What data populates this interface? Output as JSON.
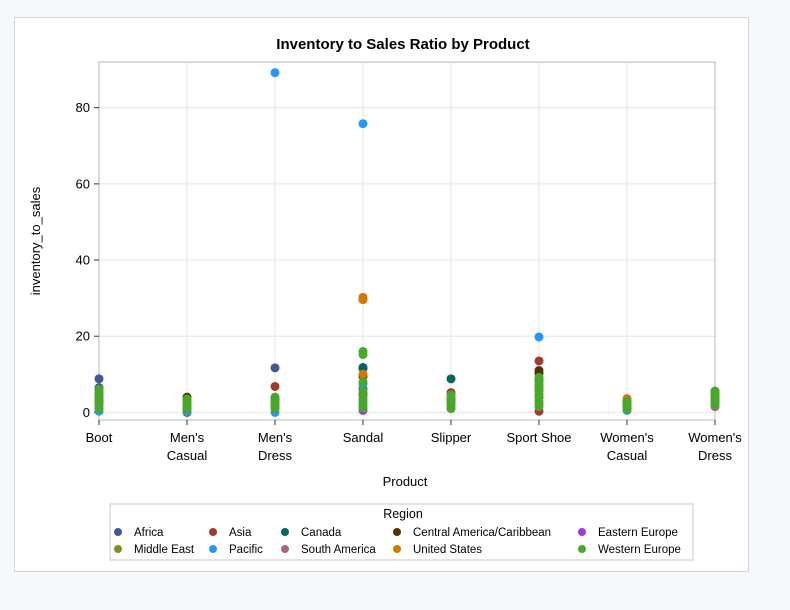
{
  "chart_data": {
    "type": "scatter",
    "title": "Inventory to Sales Ratio by Product",
    "xlabel": "Product",
    "ylabel": "inventory_to_sales",
    "categories": [
      [
        "Boot"
      ],
      [
        "Men's",
        "Casual"
      ],
      [
        "Men's",
        "Dress"
      ],
      [
        "Sandal"
      ],
      [
        "Slipper"
      ],
      [
        "Sport Shoe"
      ],
      [
        "Women's",
        "Casual"
      ],
      [
        "Women's",
        "Dress"
      ]
    ],
    "ylim": [
      -2,
      92
    ],
    "yticks": [
      0,
      20,
      40,
      60,
      80
    ],
    "grid": true,
    "legend": {
      "title": "Region",
      "position": "bottom"
    },
    "series": [
      {
        "name": "Africa",
        "color": "#445694",
        "points": [
          [
            0,
            8.8
          ],
          [
            0,
            6.5
          ],
          [
            2,
            11.7
          ],
          [
            3,
            11.5
          ],
          [
            3,
            6.2
          ],
          [
            7,
            5.2
          ]
        ]
      },
      {
        "name": "Asia",
        "color": "#a23a2e",
        "points": [
          [
            0,
            2.0
          ],
          [
            1,
            0.0
          ],
          [
            1,
            2.2
          ],
          [
            2,
            6.8
          ],
          [
            3,
            4.8
          ],
          [
            4,
            5.2
          ],
          [
            5,
            13.5
          ],
          [
            5,
            0.3
          ],
          [
            6,
            1.0
          ],
          [
            7,
            2.5
          ]
        ]
      },
      {
        "name": "Canada",
        "color": "#01665e",
        "points": [
          [
            0,
            5.0
          ],
          [
            1,
            3.0
          ],
          [
            2,
            3.5
          ],
          [
            3,
            11.8
          ],
          [
            4,
            8.8
          ],
          [
            5,
            8.5
          ],
          [
            6,
            2.6
          ],
          [
            7,
            4.8
          ]
        ]
      },
      {
        "name": "Central America/Caribbean",
        "color": "#543005",
        "points": [
          [
            0,
            3.0
          ],
          [
            1,
            4.0
          ],
          [
            2,
            2.4
          ],
          [
            3,
            9.5
          ],
          [
            4,
            3.5
          ],
          [
            5,
            11.0
          ],
          [
            5,
            10.2
          ],
          [
            6,
            2.4
          ],
          [
            7,
            3.8
          ]
        ]
      },
      {
        "name": "Eastern Europe",
        "color": "#9d3cdb",
        "points": [
          [
            0,
            4.2
          ],
          [
            1,
            1.0
          ],
          [
            2,
            1.8
          ],
          [
            3,
            0.5
          ],
          [
            4,
            3.2
          ],
          [
            5,
            4.0
          ],
          [
            6,
            1.8
          ],
          [
            7,
            3.0
          ]
        ]
      },
      {
        "name": "Middle East",
        "color": "#7f8e1f",
        "points": [
          [
            0,
            5.5
          ],
          [
            1,
            2.5
          ],
          [
            2,
            3.0
          ],
          [
            3,
            2.2
          ],
          [
            4,
            4.0
          ],
          [
            5,
            6.0
          ],
          [
            6,
            3.0
          ],
          [
            7,
            4.5
          ]
        ]
      },
      {
        "name": "Pacific",
        "color": "#2597fa",
        "points": [
          [
            0,
            0.3
          ],
          [
            1,
            0.2
          ],
          [
            2,
            89.2
          ],
          [
            2,
            0.0
          ],
          [
            3,
            75.8
          ],
          [
            3,
            7.4
          ],
          [
            4,
            2.0
          ],
          [
            5,
            19.8
          ],
          [
            6,
            0.5
          ],
          [
            7,
            3.5
          ]
        ]
      },
      {
        "name": "South America",
        "color": "#b26084",
        "points": [
          [
            0,
            2.2
          ],
          [
            1,
            1.5
          ],
          [
            2,
            2.1
          ],
          [
            3,
            3.3
          ],
          [
            4,
            2.5
          ],
          [
            5,
            2.2
          ],
          [
            6,
            1.6
          ],
          [
            7,
            1.5
          ]
        ]
      },
      {
        "name": "United States",
        "color": "#d17800",
        "points": [
          [
            0,
            3.8
          ],
          [
            1,
            2.2
          ],
          [
            2,
            2.3
          ],
          [
            3,
            30.2
          ],
          [
            3,
            29.6
          ],
          [
            3,
            10.0
          ],
          [
            4,
            3.0
          ],
          [
            5,
            7.0
          ],
          [
            6,
            3.6
          ],
          [
            7,
            4.0
          ]
        ]
      },
      {
        "name": "Western Europe",
        "color": "#47a82a",
        "points": [
          [
            0,
            1.0
          ],
          [
            0,
            1.8
          ],
          [
            0,
            2.5
          ],
          [
            0,
            3.5
          ],
          [
            0,
            4.5
          ],
          [
            0,
            6.0
          ],
          [
            1,
            0.8
          ],
          [
            1,
            1.5
          ],
          [
            1,
            2.8
          ],
          [
            1,
            3.5
          ],
          [
            2,
            1.0
          ],
          [
            2,
            1.5
          ],
          [
            2,
            2.6
          ],
          [
            2,
            3.3
          ],
          [
            2,
            4.0
          ],
          [
            3,
            16.0
          ],
          [
            3,
            15.2
          ],
          [
            3,
            8.0
          ],
          [
            3,
            5.5
          ],
          [
            3,
            4.0
          ],
          [
            3,
            3.0
          ],
          [
            3,
            2.0
          ],
          [
            3,
            1.2
          ],
          [
            4,
            1.0
          ],
          [
            4,
            1.8
          ],
          [
            4,
            2.8
          ],
          [
            4,
            3.8
          ],
          [
            4,
            4.6
          ],
          [
            5,
            1.5
          ],
          [
            5,
            2.8
          ],
          [
            5,
            3.8
          ],
          [
            5,
            4.8
          ],
          [
            5,
            5.6
          ],
          [
            5,
            6.5
          ],
          [
            5,
            7.2
          ],
          [
            5,
            7.8
          ],
          [
            5,
            8.6
          ],
          [
            5,
            9.2
          ],
          [
            6,
            0.8
          ],
          [
            6,
            1.4
          ],
          [
            6,
            2.0
          ],
          [
            6,
            2.8
          ],
          [
            7,
            2.0
          ],
          [
            7,
            2.7
          ],
          [
            7,
            3.2
          ],
          [
            7,
            4.2
          ],
          [
            7,
            5.0
          ],
          [
            7,
            5.6
          ]
        ]
      }
    ]
  }
}
